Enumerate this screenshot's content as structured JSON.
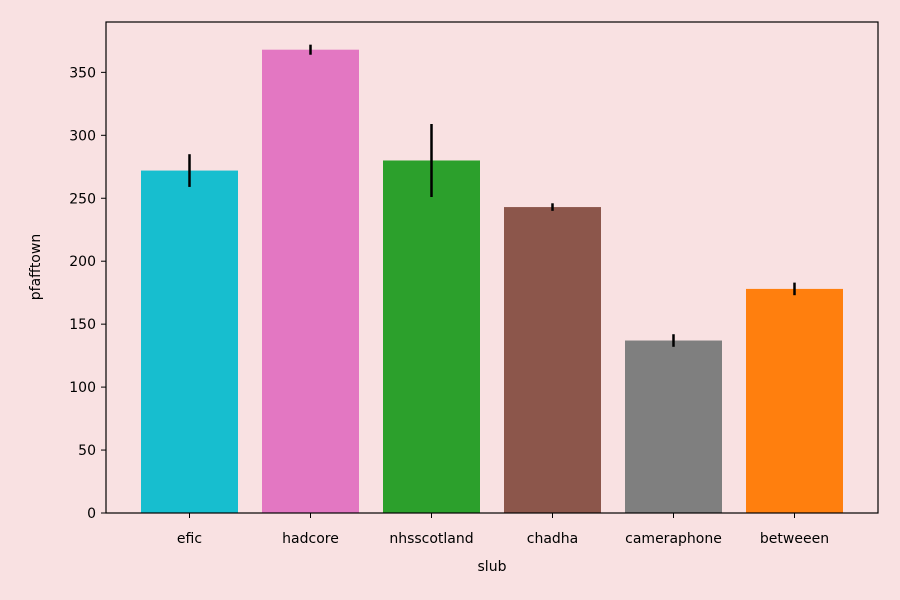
{
  "chart_data": {
    "type": "bar",
    "title": "",
    "xlabel": "slub",
    "ylabel": "pfafftown",
    "categories": [
      "efic",
      "hadcore",
      "nhsscotland",
      "chadha",
      "cameraphone",
      "betweeen"
    ],
    "values": [
      272,
      368,
      280,
      243,
      137,
      178
    ],
    "errors": [
      13,
      4,
      29,
      3,
      5,
      5
    ],
    "colors": [
      "#17becf",
      "#e377c2",
      "#2ca02c",
      "#8c564b",
      "#7f7f7f",
      "#ff7f0e"
    ],
    "ylim": [
      0,
      390
    ],
    "yticks": [
      0,
      50,
      100,
      150,
      200,
      250,
      300,
      350
    ],
    "grid": false,
    "legend": "none",
    "background": "#f9e1e2"
  }
}
